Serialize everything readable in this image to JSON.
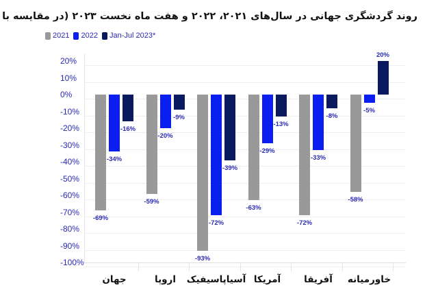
{
  "chart_data": {
    "type": "bar",
    "title": "روند گردشگری جهانی در سال‌های ۲۰۲۱، ۲۰۲۲ و هفت ماه نخست ۲۰۲۳ (در مقایسه با سال ۲۰۱۹)",
    "xlabel": "",
    "ylabel": "",
    "ylim": [
      -100,
      20
    ],
    "yticks": [
      "20%",
      "10%",
      "0%",
      "-10%",
      "-20%",
      "-30%",
      "-40%",
      "-50%",
      "-60%",
      "-70%",
      "-80%",
      "-90%",
      "-100%"
    ],
    "grid": true,
    "legend_position": "top-left",
    "categories": [
      "جهان",
      "اروپا",
      "آسیاپاسیفیک",
      "آمریکا",
      "آفریقا",
      "خاورمیانه"
    ],
    "series": [
      {
        "name": "2021",
        "color": "#999999",
        "values": [
          -69,
          -59,
          -93,
          -63,
          -72,
          -58
        ],
        "labels": [
          "-69%",
          "-59%",
          "-93%",
          "-63%",
          "-72%",
          "-58%"
        ]
      },
      {
        "name": "2022",
        "color": "#0a1ef0",
        "values": [
          -34,
          -20,
          -72,
          -29,
          -33,
          -5
        ],
        "labels": [
          "-34%",
          "-20%",
          "-72%",
          "-29%",
          "-33%",
          "-5%"
        ]
      },
      {
        "name": "Jan-Jul 2023*",
        "color": "#0b1a5e",
        "values": [
          -16,
          -9,
          -39,
          -13,
          -8,
          20
        ],
        "labels": [
          "-16%",
          "-9%",
          "-39%",
          "-13%",
          "-8%",
          "20%"
        ]
      }
    ]
  }
}
